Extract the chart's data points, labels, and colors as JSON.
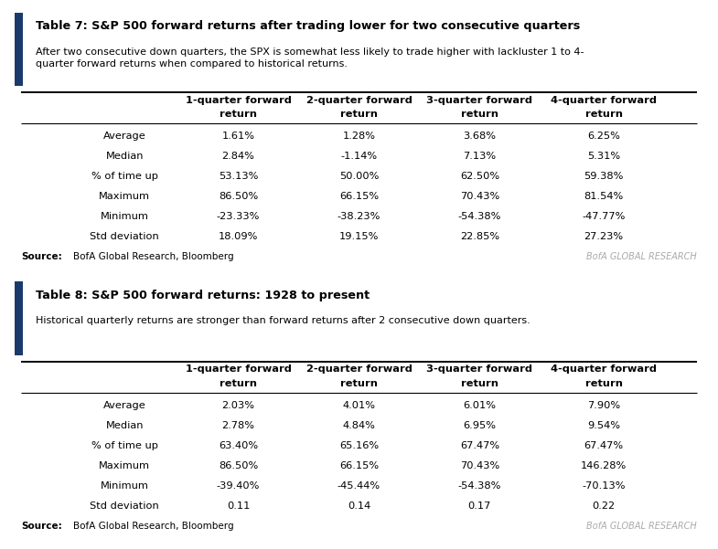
{
  "table1": {
    "title_bold": "Table 7: S&P 500 forward returns after trading lower for two consecutive quarters",
    "subtitle": "After two consecutive down quarters, the SPX is somewhat less likely to trade higher with lackluster 1 to 4-\nquarter forward returns when compared to historical returns.",
    "col_headers": [
      "1-quarter forward\nreturn",
      "2-quarter forward\nreturn",
      "3-quarter forward\nreturn",
      "4-quarter forward\nreturn"
    ],
    "row_labels": [
      "Average",
      "Median",
      "% of time up",
      "Maximum",
      "Minimum",
      "Std deviation"
    ],
    "data": [
      [
        "1.61%",
        "1.28%",
        "3.68%",
        "6.25%"
      ],
      [
        "2.84%",
        "-1.14%",
        "7.13%",
        "5.31%"
      ],
      [
        "53.13%",
        "50.00%",
        "62.50%",
        "59.38%"
      ],
      [
        "86.50%",
        "66.15%",
        "70.43%",
        "81.54%"
      ],
      [
        "-23.33%",
        "-38.23%",
        "-54.38%",
        "-47.77%"
      ],
      [
        "18.09%",
        "19.15%",
        "22.85%",
        "27.23%"
      ]
    ],
    "source": "BofA Global Research, Bloomberg"
  },
  "table2": {
    "title_bold": "Table 8: S&P 500 forward returns: 1928 to present",
    "subtitle": "Historical quarterly returns are stronger than forward returns after 2 consecutive down quarters.",
    "col_headers": [
      "1-quarter forward\nreturn",
      "2-quarter forward\nreturn",
      "3-quarter forward\nreturn",
      "4-quarter forward\nreturn"
    ],
    "row_labels": [
      "Average",
      "Median",
      "% of time up",
      "Maximum",
      "Minimum",
      "Std deviation"
    ],
    "data": [
      [
        "2.03%",
        "4.01%",
        "6.01%",
        "7.90%"
      ],
      [
        "2.78%",
        "4.84%",
        "6.95%",
        "9.54%"
      ],
      [
        "63.40%",
        "65.16%",
        "67.47%",
        "67.47%"
      ],
      [
        "86.50%",
        "66.15%",
        "70.43%",
        "146.28%"
      ],
      [
        "-39.40%",
        "-45.44%",
        "-54.38%",
        "-70.13%"
      ],
      [
        "0.11",
        "0.14",
        "0.17",
        "0.22"
      ]
    ],
    "source": "BofA Global Research, Bloomberg"
  },
  "accent_color": "#1a3a6b",
  "bg_color": "#ffffff",
  "text_color": "#000000",
  "source_label": "Source:",
  "watermark": "BofA GLOBAL RESEARCH",
  "watermark_color": "#aaaaaa"
}
